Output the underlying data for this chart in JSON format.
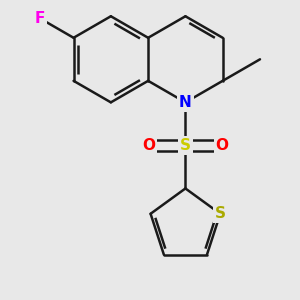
{
  "background_color": "#e8e8e8",
  "bond_color": "#1a1a1a",
  "bond_lw": 1.8,
  "atom_colors": {
    "F": "#ff00ee",
    "N": "#0000ff",
    "S_sulfonyl": "#cccc00",
    "O": "#ff0000",
    "S_thio": "#aaaa00",
    "C": "#1a1a1a"
  },
  "font_size": 11
}
